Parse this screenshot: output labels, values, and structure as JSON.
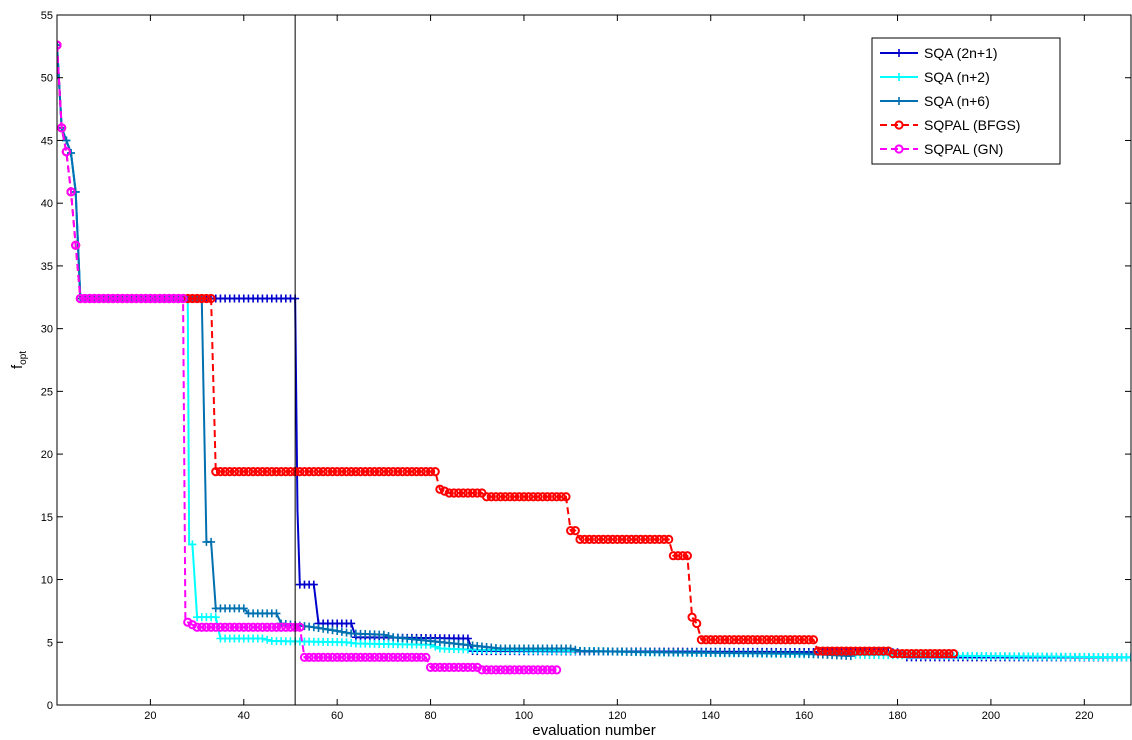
{
  "chart_data": {
    "type": "line",
    "xlabel": "evaluation number",
    "ylabel": "f",
    "ylabel_sub": "opt",
    "xlim": [
      0,
      230
    ],
    "ylim": [
      0,
      55
    ],
    "x_ticks": [
      20,
      40,
      60,
      80,
      100,
      120,
      140,
      160,
      180,
      200,
      220
    ],
    "y_ticks": [
      0,
      5,
      10,
      15,
      20,
      25,
      30,
      35,
      40,
      45,
      50,
      55
    ],
    "grid": false,
    "legend_position": "top-right",
    "vertical_reference_line_x": 51,
    "series": [
      {
        "name": "SQA (2n+1)",
        "color": "#0000cc",
        "dash": "solid",
        "marker": "plus",
        "points": [
          [
            0,
            52.6
          ],
          [
            1,
            46
          ],
          [
            2,
            45
          ],
          [
            3,
            44
          ],
          [
            4,
            40.9
          ],
          [
            5,
            32.4
          ],
          [
            51,
            32.4
          ],
          [
            51.5,
            15.5
          ],
          [
            52,
            9.6
          ],
          [
            55,
            9.6
          ],
          [
            56,
            6.5
          ],
          [
            63,
            6.5
          ],
          [
            64,
            5.4
          ],
          [
            88,
            5.3
          ],
          [
            89,
            4.3
          ],
          [
            180,
            4.2
          ],
          [
            182,
            3.8
          ],
          [
            230,
            3.8
          ]
        ]
      },
      {
        "name": "SQA (n+2)",
        "color": "#00ffff",
        "dash": "solid",
        "marker": "plus",
        "points": [
          [
            0,
            52.6
          ],
          [
            1,
            46
          ],
          [
            2,
            45
          ],
          [
            3,
            44
          ],
          [
            4,
            40.9
          ],
          [
            5,
            32.4
          ],
          [
            28,
            32.4
          ],
          [
            28.3,
            12.8
          ],
          [
            29,
            12.8
          ],
          [
            30,
            7
          ],
          [
            34,
            7
          ],
          [
            35,
            5.3
          ],
          [
            44,
            5.3
          ],
          [
            46,
            5.1
          ],
          [
            62,
            5
          ],
          [
            64,
            4.9
          ],
          [
            80,
            4.8
          ],
          [
            82,
            4.5
          ],
          [
            90,
            4.4
          ],
          [
            115,
            4.3
          ],
          [
            125,
            4.2
          ],
          [
            150,
            4.1
          ],
          [
            170,
            4
          ],
          [
            200,
            3.9
          ],
          [
            230,
            3.8
          ]
        ]
      },
      {
        "name": "SQA (n+6)",
        "color": "#0070b0",
        "dash": "solid",
        "marker": "plus",
        "points": [
          [
            0,
            52.6
          ],
          [
            1,
            46
          ],
          [
            2,
            45
          ],
          [
            3,
            44
          ],
          [
            4,
            40.9
          ],
          [
            5,
            32.4
          ],
          [
            31,
            32.4
          ],
          [
            32,
            13
          ],
          [
            33,
            13
          ],
          [
            34,
            7.7
          ],
          [
            40,
            7.7
          ],
          [
            41,
            7.3
          ],
          [
            47,
            7.3
          ],
          [
            48,
            6.5
          ],
          [
            55,
            6.2
          ],
          [
            60,
            5.9
          ],
          [
            63,
            5.7
          ],
          [
            70,
            5.6
          ],
          [
            72,
            5.4
          ],
          [
            80,
            5.1
          ],
          [
            90,
            4.7
          ],
          [
            95,
            4.5
          ],
          [
            110,
            4.5
          ],
          [
            112,
            4.3
          ],
          [
            130,
            4.2
          ],
          [
            160,
            4.1
          ],
          [
            170,
            3.9
          ]
        ]
      },
      {
        "name": "SQPAL (BFGS)",
        "color": "#ff0000",
        "dash": "dashed",
        "marker": "circle",
        "points": [
          [
            0,
            52.6
          ],
          [
            1,
            46
          ],
          [
            2,
            44.1
          ],
          [
            3,
            40.9
          ],
          [
            5,
            32.4
          ],
          [
            33,
            32.4
          ],
          [
            34,
            18.6
          ],
          [
            81,
            18.6
          ],
          [
            82,
            17.2
          ],
          [
            84,
            16.9
          ],
          [
            91,
            16.9
          ],
          [
            92,
            16.6
          ],
          [
            109,
            16.6
          ],
          [
            110,
            13.9
          ],
          [
            111,
            13.9
          ],
          [
            112,
            13.2
          ],
          [
            131,
            13.2
          ],
          [
            132,
            11.9
          ],
          [
            135,
            11.9
          ],
          [
            136,
            7
          ],
          [
            137,
            6.5
          ],
          [
            138,
            5.2
          ],
          [
            162,
            5.2
          ],
          [
            163,
            4.3
          ],
          [
            178,
            4.3
          ],
          [
            179,
            4.1
          ],
          [
            192,
            4.1
          ]
        ]
      },
      {
        "name": "SQPAL (GN)",
        "color": "#ff00ff",
        "dash": "dashed",
        "marker": "circle",
        "points": [
          [
            0,
            52.6
          ],
          [
            1,
            46
          ],
          [
            2,
            44.1
          ],
          [
            3,
            40.9
          ],
          [
            5,
            32.4
          ],
          [
            27,
            32.4
          ],
          [
            27.5,
            6.7
          ],
          [
            29,
            6.4
          ],
          [
            30,
            6.2
          ],
          [
            52,
            6.2
          ],
          [
            53,
            3.8
          ],
          [
            79,
            3.8
          ],
          [
            80,
            3
          ],
          [
            90,
            3
          ],
          [
            91,
            2.8
          ],
          [
            107,
            2.8
          ]
        ]
      }
    ]
  }
}
